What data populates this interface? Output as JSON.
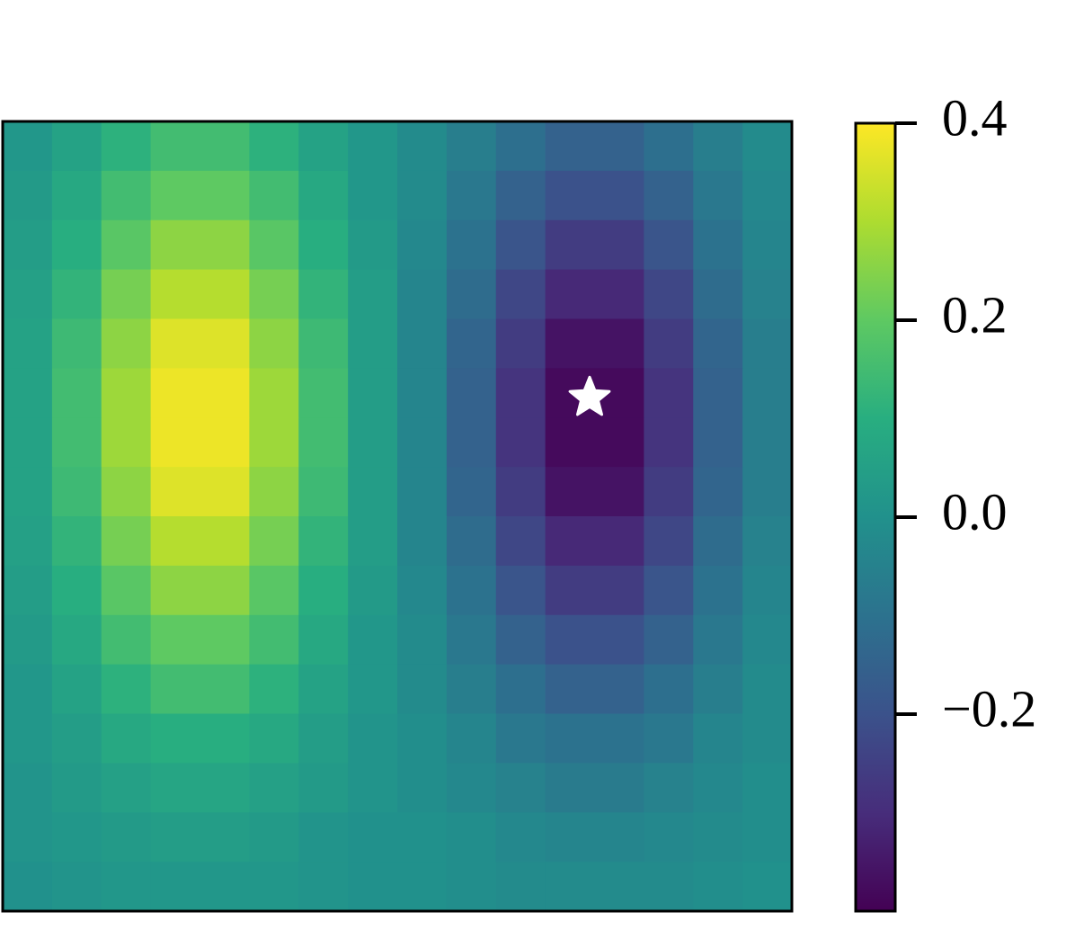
{
  "chart_data": {
    "type": "heatmap",
    "cmap": "viridis",
    "z": [
      [
        0.02,
        0.06,
        0.11,
        0.15,
        0.15,
        0.11,
        0.06,
        0.02,
        -0.02,
        -0.06,
        -0.11,
        -0.15,
        -0.15,
        -0.11,
        -0.06,
        -0.02
      ],
      [
        0.03,
        0.08,
        0.15,
        0.2,
        0.2,
        0.15,
        0.08,
        0.02,
        -0.02,
        -0.08,
        -0.15,
        -0.2,
        -0.2,
        -0.15,
        -0.08,
        -0.03
      ],
      [
        0.04,
        0.1,
        0.19,
        0.26,
        0.26,
        0.19,
        0.1,
        0.03,
        -0.03,
        -0.1,
        -0.19,
        -0.26,
        -0.26,
        -0.19,
        -0.1,
        -0.04
      ],
      [
        0.05,
        0.12,
        0.23,
        0.31,
        0.31,
        0.23,
        0.12,
        0.04,
        -0.04,
        -0.12,
        -0.23,
        -0.31,
        -0.31,
        -0.23,
        -0.12,
        -0.05
      ],
      [
        0.06,
        0.14,
        0.26,
        0.36,
        0.36,
        0.26,
        0.14,
        0.04,
        -0.04,
        -0.14,
        -0.26,
        -0.36,
        -0.36,
        -0.26,
        -0.14,
        -0.06
      ],
      [
        0.06,
        0.15,
        0.28,
        0.38,
        0.38,
        0.28,
        0.15,
        0.04,
        -0.04,
        -0.15,
        -0.28,
        -0.38,
        -0.38,
        -0.28,
        -0.15,
        -0.06
      ],
      [
        0.06,
        0.15,
        0.28,
        0.38,
        0.38,
        0.28,
        0.15,
        0.04,
        -0.04,
        -0.15,
        -0.28,
        -0.38,
        -0.38,
        -0.28,
        -0.15,
        -0.06
      ],
      [
        0.06,
        0.14,
        0.26,
        0.36,
        0.36,
        0.26,
        0.14,
        0.04,
        -0.04,
        -0.14,
        -0.26,
        -0.36,
        -0.36,
        -0.26,
        -0.14,
        -0.06
      ],
      [
        0.05,
        0.12,
        0.23,
        0.31,
        0.31,
        0.23,
        0.12,
        0.04,
        -0.04,
        -0.12,
        -0.23,
        -0.31,
        -0.31,
        -0.23,
        -0.12,
        -0.05
      ],
      [
        0.04,
        0.1,
        0.19,
        0.26,
        0.26,
        0.19,
        0.1,
        0.03,
        -0.03,
        -0.1,
        -0.19,
        -0.26,
        -0.26,
        -0.19,
        -0.1,
        -0.04
      ],
      [
        0.03,
        0.08,
        0.15,
        0.2,
        0.2,
        0.15,
        0.08,
        0.02,
        -0.02,
        -0.08,
        -0.15,
        -0.2,
        -0.2,
        -0.15,
        -0.08,
        -0.03
      ],
      [
        0.02,
        0.06,
        0.11,
        0.15,
        0.15,
        0.11,
        0.06,
        0.02,
        -0.02,
        -0.06,
        -0.11,
        -0.15,
        -0.15,
        -0.11,
        -0.06,
        -0.02
      ],
      [
        0.02,
        0.04,
        0.08,
        0.1,
        0.1,
        0.08,
        0.04,
        0.01,
        -0.01,
        -0.04,
        -0.08,
        -0.1,
        -0.1,
        -0.08,
        -0.04,
        -0.02
      ],
      [
        0.01,
        0.03,
        0.05,
        0.07,
        0.07,
        0.05,
        0.03,
        0.01,
        -0.01,
        -0.03,
        -0.05,
        -0.07,
        -0.07,
        -0.05,
        -0.03,
        -0.01
      ],
      [
        0.01,
        0.02,
        0.03,
        0.04,
        0.04,
        0.03,
        0.01,
        0,
        0,
        -0.01,
        -0.03,
        -0.04,
        -0.04,
        -0.03,
        -0.02,
        -0.01
      ],
      [
        0,
        0.01,
        0.02,
        0.02,
        0.02,
        0.02,
        0.01,
        0,
        0,
        -0.01,
        -0.02,
        -0.02,
        -0.02,
        -0.02,
        -0.01,
        0
      ]
    ],
    "xlim": [
      0,
      16
    ],
    "ylim": [
      16,
      0
    ],
    "marker": {
      "x": 11.9,
      "y": 5.6,
      "color": "#ffffff"
    },
    "clim": [
      -0.4,
      0.4
    ],
    "cticks": [
      {
        "value": -0.2,
        "label": "−0.2"
      },
      {
        "value": 0,
        "label": "0.0"
      },
      0.2,
      0.4
    ]
  }
}
